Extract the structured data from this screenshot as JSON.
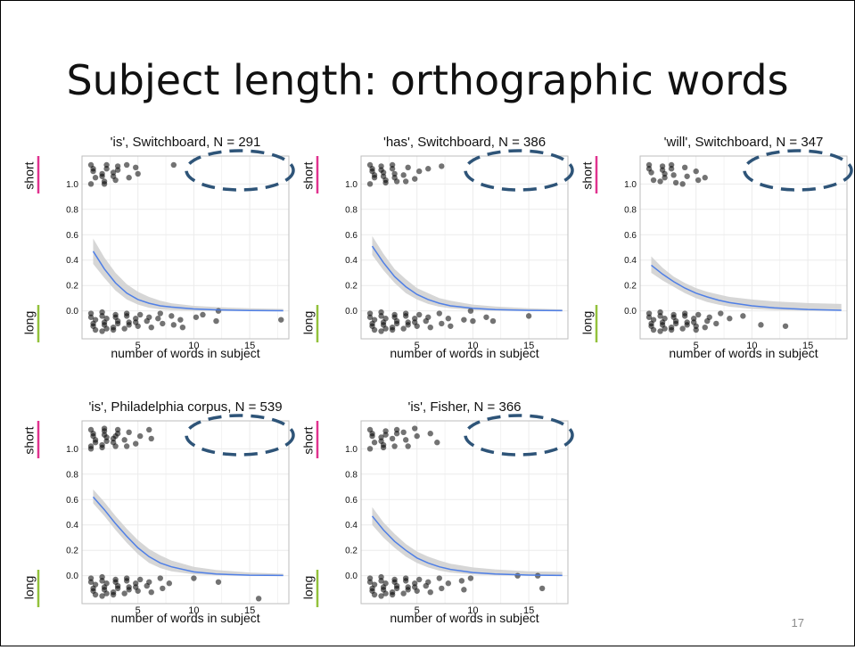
{
  "slide": {
    "title": "Subject length: orthographic words",
    "page_number": "17"
  },
  "chart_data": [
    {
      "type": "scatter",
      "title": "'is', Switchboard, N = 291",
      "xlabel": "number of words in subject",
      "ylabel_top": "short",
      "ylabel_bottom": "long",
      "xlim": [
        0,
        18.5
      ],
      "ylim": [
        -0.22,
        1.22
      ],
      "x_ticks": [
        5,
        10,
        15
      ],
      "y_ticks": [
        0.0,
        0.2,
        0.4,
        0.6,
        0.8,
        1.0
      ],
      "fit_curve": {
        "x": [
          1,
          2,
          3,
          4,
          5,
          6,
          7,
          8,
          10,
          12,
          15,
          18
        ],
        "y": [
          0.47,
          0.33,
          0.22,
          0.14,
          0.09,
          0.06,
          0.04,
          0.03,
          0.015,
          0.008,
          0.003,
          0.001
        ]
      },
      "confidence_band": {
        "x": [
          1,
          2,
          3,
          4,
          5,
          6,
          7,
          8,
          10,
          12,
          15,
          18
        ],
        "lower": [
          0.37,
          0.26,
          0.16,
          0.09,
          0.05,
          0.025,
          0.012,
          0.006,
          0.002,
          0.001,
          0.0,
          0.0
        ],
        "upper": [
          0.57,
          0.42,
          0.3,
          0.21,
          0.15,
          0.11,
          0.08,
          0.06,
          0.04,
          0.03,
          0.02,
          0.015
        ]
      },
      "points_short": {
        "x": [
          1,
          1,
          1,
          1,
          1,
          2,
          2,
          2,
          2,
          2,
          2,
          3,
          3,
          3,
          3,
          3,
          4,
          4,
          5,
          5,
          8
        ],
        "y": [
          1.15,
          1.1,
          1.05,
          1.0,
          1.12,
          1.15,
          1.08,
          1.02,
          1.12,
          1.06,
          1.0,
          1.14,
          1.09,
          1.03,
          1.11,
          1.06,
          1.15,
          1.05,
          1.13,
          1.08,
          1.15
        ]
      },
      "points_long": {
        "x": [
          1,
          1,
          1,
          1,
          1,
          1,
          2,
          2,
          2,
          2,
          2,
          2,
          2,
          3,
          3,
          3,
          3,
          3,
          3,
          4,
          4,
          4,
          4,
          4,
          5,
          5,
          5,
          5,
          6,
          6,
          6,
          7,
          7,
          7,
          8,
          8,
          9,
          9,
          10,
          11,
          12,
          12,
          18
        ],
        "y": [
          -0.05,
          -0.1,
          -0.15,
          -0.02,
          -0.12,
          -0.07,
          -0.04,
          -0.09,
          -0.14,
          -0.01,
          -0.11,
          -0.06,
          -0.16,
          -0.03,
          -0.08,
          -0.13,
          -0.05,
          -0.1,
          -0.15,
          -0.04,
          -0.09,
          -0.14,
          -0.02,
          -0.11,
          -0.06,
          -0.12,
          -0.03,
          -0.09,
          -0.05,
          -0.13,
          -0.08,
          -0.02,
          -0.1,
          -0.06,
          -0.04,
          -0.11,
          -0.07,
          -0.13,
          -0.05,
          -0.03,
          -0.08,
          0.0,
          -0.07
        ]
      },
      "highlight": "dashed ellipse top-right"
    },
    {
      "type": "scatter",
      "title": "'has', Switchboard, N = 386",
      "xlabel": "number of words in subject",
      "ylabel_top": "short",
      "ylabel_bottom": "long",
      "xlim": [
        0,
        18.5
      ],
      "ylim": [
        -0.22,
        1.22
      ],
      "x_ticks": [
        5,
        10,
        15
      ],
      "y_ticks": [
        0.0,
        0.2,
        0.4,
        0.6,
        0.8,
        1.0
      ],
      "fit_curve": {
        "x": [
          1,
          2,
          3,
          4,
          5,
          6,
          7,
          8,
          10,
          12,
          15,
          18
        ],
        "y": [
          0.51,
          0.38,
          0.27,
          0.19,
          0.13,
          0.09,
          0.06,
          0.04,
          0.02,
          0.01,
          0.004,
          0.002
        ]
      },
      "confidence_band": {
        "x": [
          1,
          2,
          3,
          4,
          5,
          6,
          7,
          8,
          10,
          12,
          15,
          18
        ],
        "lower": [
          0.44,
          0.32,
          0.22,
          0.14,
          0.09,
          0.055,
          0.033,
          0.02,
          0.007,
          0.003,
          0.001,
          0.0
        ],
        "upper": [
          0.59,
          0.45,
          0.33,
          0.25,
          0.18,
          0.14,
          0.1,
          0.08,
          0.05,
          0.035,
          0.02,
          0.012
        ]
      },
      "points_short": {
        "x": [
          1,
          1,
          1,
          1,
          1,
          1,
          2,
          2,
          2,
          2,
          2,
          2,
          3,
          3,
          3,
          3,
          3,
          4,
          4,
          4,
          5,
          5,
          6,
          7
        ],
        "y": [
          1.15,
          1.1,
          1.05,
          1.0,
          1.12,
          1.07,
          1.14,
          1.09,
          1.03,
          1.11,
          1.06,
          1.01,
          1.15,
          1.08,
          1.02,
          1.12,
          1.05,
          1.13,
          1.07,
          1.02,
          1.1,
          1.04,
          1.12,
          1.14
        ]
      },
      "points_long": {
        "x": [
          1,
          1,
          1,
          1,
          1,
          1,
          2,
          2,
          2,
          2,
          2,
          2,
          2,
          3,
          3,
          3,
          3,
          3,
          3,
          4,
          4,
          4,
          4,
          4,
          5,
          5,
          5,
          5,
          6,
          6,
          6,
          7,
          7,
          8,
          8,
          9,
          10,
          10,
          11,
          12,
          15
        ],
        "y": [
          -0.05,
          -0.1,
          -0.15,
          -0.02,
          -0.12,
          -0.07,
          -0.04,
          -0.09,
          -0.14,
          -0.01,
          -0.11,
          -0.06,
          -0.16,
          -0.03,
          -0.08,
          -0.13,
          -0.05,
          -0.1,
          -0.15,
          -0.04,
          -0.09,
          -0.14,
          -0.02,
          -0.11,
          -0.06,
          -0.12,
          -0.03,
          -0.09,
          -0.05,
          -0.13,
          -0.08,
          -0.02,
          -0.1,
          -0.06,
          -0.12,
          -0.07,
          0.0,
          -0.08,
          -0.05,
          -0.08,
          -0.04
        ]
      },
      "highlight": "dashed ellipse top-right"
    },
    {
      "type": "scatter",
      "title": "'will', Switchboard, N = 347",
      "xlabel": "number of words in subject",
      "ylabel_top": "short",
      "ylabel_bottom": "long",
      "xlim": [
        0,
        18.5
      ],
      "ylim": [
        -0.22,
        1.22
      ],
      "x_ticks": [
        5,
        10,
        15
      ],
      "y_ticks": [
        0.0,
        0.2,
        0.4,
        0.6,
        0.8,
        1.0
      ],
      "fit_curve": {
        "x": [
          1,
          2,
          3,
          4,
          5,
          6,
          7,
          8,
          10,
          12,
          15,
          18
        ],
        "y": [
          0.36,
          0.29,
          0.23,
          0.18,
          0.14,
          0.11,
          0.085,
          0.065,
          0.04,
          0.024,
          0.011,
          0.005
        ]
      },
      "confidence_band": {
        "x": [
          1,
          2,
          3,
          4,
          5,
          6,
          7,
          8,
          10,
          12,
          15,
          18
        ],
        "lower": [
          0.3,
          0.24,
          0.19,
          0.14,
          0.1,
          0.07,
          0.05,
          0.033,
          0.015,
          0.007,
          0.002,
          0.001
        ],
        "upper": [
          0.43,
          0.34,
          0.27,
          0.22,
          0.18,
          0.15,
          0.13,
          0.11,
          0.09,
          0.075,
          0.062,
          0.055
        ]
      },
      "points_short": {
        "x": [
          1,
          1,
          1,
          1,
          2,
          2,
          2,
          2,
          2,
          3,
          3,
          3,
          3,
          4,
          4,
          4,
          5,
          5,
          6
        ],
        "y": [
          1.15,
          1.09,
          1.03,
          1.12,
          1.14,
          1.08,
          1.02,
          1.11,
          1.05,
          1.15,
          1.07,
          1.01,
          1.12,
          1.13,
          1.06,
          1.0,
          1.1,
          1.03,
          1.05
        ]
      },
      "points_long": {
        "x": [
          1,
          1,
          1,
          1,
          1,
          1,
          2,
          2,
          2,
          2,
          2,
          2,
          2,
          3,
          3,
          3,
          3,
          3,
          3,
          4,
          4,
          4,
          4,
          4,
          5,
          5,
          5,
          5,
          5,
          6,
          6,
          6,
          7,
          7,
          8,
          9,
          11,
          13
        ],
        "y": [
          -0.05,
          -0.1,
          -0.15,
          -0.02,
          -0.12,
          -0.07,
          -0.04,
          -0.09,
          -0.14,
          -0.01,
          -0.11,
          -0.06,
          -0.16,
          -0.03,
          -0.08,
          -0.13,
          -0.05,
          -0.1,
          -0.15,
          -0.04,
          -0.09,
          -0.14,
          -0.02,
          -0.11,
          -0.06,
          -0.12,
          -0.03,
          -0.09,
          -0.15,
          -0.05,
          -0.13,
          -0.08,
          -0.02,
          -0.1,
          -0.06,
          -0.04,
          -0.11,
          -0.12
        ]
      },
      "highlight": "dashed ellipse top-right"
    },
    {
      "type": "scatter",
      "title": "'is', Philadelphia corpus, N = 539",
      "xlabel": "number of words in subject",
      "ylabel_top": "short",
      "ylabel_bottom": "long",
      "xlim": [
        0,
        18.5
      ],
      "ylim": [
        -0.22,
        1.22
      ],
      "x_ticks": [
        5,
        10,
        15
      ],
      "y_ticks": [
        0.0,
        0.2,
        0.4,
        0.6,
        0.8,
        1.0
      ],
      "fit_curve": {
        "x": [
          1,
          2,
          3,
          4,
          5,
          6,
          7,
          8,
          10,
          12,
          15,
          18
        ],
        "y": [
          0.62,
          0.52,
          0.41,
          0.31,
          0.22,
          0.15,
          0.1,
          0.07,
          0.03,
          0.013,
          0.004,
          0.002
        ]
      },
      "confidence_band": {
        "x": [
          1,
          2,
          3,
          4,
          5,
          6,
          7,
          8,
          10,
          12,
          15,
          18
        ],
        "lower": [
          0.57,
          0.47,
          0.36,
          0.26,
          0.17,
          0.1,
          0.06,
          0.035,
          0.011,
          0.004,
          0.001,
          0.0
        ],
        "upper": [
          0.68,
          0.58,
          0.47,
          0.37,
          0.28,
          0.21,
          0.16,
          0.12,
          0.07,
          0.045,
          0.025,
          0.015
        ]
      },
      "points_short": {
        "x": [
          1,
          1,
          1,
          1,
          1,
          1,
          1,
          2,
          2,
          2,
          2,
          2,
          2,
          2,
          3,
          3,
          3,
          3,
          3,
          3,
          4,
          4,
          4,
          5,
          5,
          6,
          6
        ],
        "y": [
          1.15,
          1.1,
          1.05,
          1.0,
          1.12,
          1.07,
          1.02,
          1.14,
          1.09,
          1.03,
          1.11,
          1.06,
          1.01,
          1.16,
          1.15,
          1.08,
          1.02,
          1.12,
          1.05,
          1.1,
          1.13,
          1.07,
          1.02,
          1.1,
          1.04,
          1.15,
          1.08
        ]
      },
      "points_long": {
        "x": [
          1,
          1,
          1,
          1,
          1,
          1,
          2,
          2,
          2,
          2,
          2,
          2,
          2,
          3,
          3,
          3,
          3,
          3,
          3,
          4,
          4,
          4,
          4,
          4,
          5,
          5,
          5,
          5,
          6,
          6,
          6,
          7,
          7,
          8,
          10,
          12,
          16
        ],
        "y": [
          -0.05,
          -0.1,
          -0.15,
          -0.02,
          -0.12,
          -0.07,
          -0.04,
          -0.09,
          -0.14,
          -0.01,
          -0.11,
          -0.06,
          -0.16,
          -0.03,
          -0.08,
          -0.13,
          -0.05,
          -0.1,
          -0.15,
          -0.04,
          -0.09,
          -0.14,
          -0.02,
          -0.11,
          -0.06,
          -0.12,
          -0.03,
          -0.09,
          -0.05,
          -0.13,
          -0.08,
          -0.02,
          -0.1,
          -0.06,
          -0.02,
          -0.05,
          -0.18
        ]
      },
      "highlight": "dashed ellipse top-right"
    },
    {
      "type": "scatter",
      "title": "'is', Fisher, N = 366",
      "xlabel": "number of words in subject",
      "ylabel_top": "short",
      "ylabel_bottom": "long",
      "xlim": [
        0,
        18.5
      ],
      "ylim": [
        -0.22,
        1.22
      ],
      "x_ticks": [
        5,
        10,
        15
      ],
      "y_ticks": [
        0.0,
        0.2,
        0.4,
        0.6,
        0.8,
        1.0
      ],
      "fit_curve": {
        "x": [
          1,
          2,
          3,
          4,
          5,
          6,
          7,
          8,
          10,
          12,
          15,
          18
        ],
        "y": [
          0.47,
          0.36,
          0.27,
          0.2,
          0.14,
          0.1,
          0.07,
          0.05,
          0.025,
          0.013,
          0.005,
          0.002
        ]
      },
      "confidence_band": {
        "x": [
          1,
          2,
          3,
          4,
          5,
          6,
          7,
          8,
          10,
          12,
          15,
          18
        ],
        "lower": [
          0.4,
          0.3,
          0.22,
          0.15,
          0.1,
          0.065,
          0.04,
          0.025,
          0.01,
          0.004,
          0.001,
          0.0
        ],
        "upper": [
          0.54,
          0.42,
          0.33,
          0.25,
          0.19,
          0.15,
          0.12,
          0.095,
          0.065,
          0.05,
          0.035,
          0.03
        ]
      },
      "points_short": {
        "x": [
          1,
          1,
          1,
          1,
          1,
          2,
          2,
          2,
          2,
          2,
          2,
          3,
          3,
          3,
          3,
          4,
          4,
          4,
          5,
          5,
          6,
          7
        ],
        "y": [
          1.15,
          1.1,
          1.05,
          1.0,
          1.12,
          1.14,
          1.09,
          1.03,
          1.11,
          1.06,
          1.01,
          1.15,
          1.08,
          1.02,
          1.12,
          1.13,
          1.07,
          1.02,
          1.16,
          1.1,
          1.12,
          1.05
        ]
      },
      "points_long": {
        "x": [
          1,
          1,
          1,
          1,
          1,
          1,
          2,
          2,
          2,
          2,
          2,
          2,
          2,
          3,
          3,
          3,
          3,
          3,
          3,
          4,
          4,
          4,
          4,
          4,
          5,
          5,
          5,
          5,
          6,
          6,
          6,
          7,
          7,
          8,
          9,
          9,
          10,
          14,
          16,
          16
        ],
        "y": [
          -0.05,
          -0.1,
          -0.15,
          -0.02,
          -0.12,
          -0.07,
          -0.04,
          -0.09,
          -0.14,
          -0.01,
          -0.11,
          -0.06,
          -0.16,
          -0.03,
          -0.08,
          -0.13,
          -0.05,
          -0.1,
          -0.15,
          -0.04,
          -0.09,
          -0.14,
          -0.02,
          -0.11,
          -0.06,
          -0.12,
          -0.03,
          -0.09,
          -0.05,
          -0.13,
          -0.08,
          -0.02,
          -0.1,
          -0.06,
          -0.04,
          -0.11,
          -0.02,
          0.0,
          -0.1,
          0.0
        ]
      },
      "highlight": "dashed ellipse top-right"
    }
  ],
  "colors": {
    "fit_line": "#4f7fe6",
    "band": "#cfcfcf",
    "points": "#000000",
    "panel_border": "#bdbdbd",
    "grid": "#ebebeb",
    "short_marker": "#e0338f",
    "long_marker": "#93c13c",
    "highlight": "#2e5478"
  }
}
